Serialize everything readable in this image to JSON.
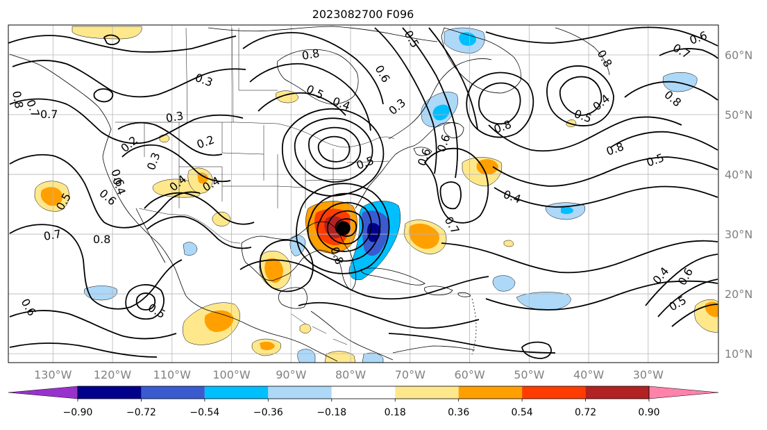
{
  "map": {
    "title": "2023082700 F096",
    "region": "North Atlantic / North America",
    "colors": {
      "background": "#ffffff",
      "frame": "#000000",
      "gridline": "#b4b4b4",
      "coastline": "#000000",
      "border": "#000000",
      "tick_label": "#808080",
      "contour": "#000000",
      "storm_marker": "#000000"
    },
    "longitude_labels": [
      "130°W",
      "120°W",
      "110°W",
      "100°W",
      "90°W",
      "80°W",
      "70°W",
      "60°W",
      "50°W",
      "40°W",
      "30°W"
    ],
    "latitude_labels": [
      "60°N",
      "50°N",
      "40°N",
      "30°N",
      "20°N",
      "10°N"
    ],
    "contour_labels": [
      "0.8",
      "0.3",
      "0.8",
      "0.5",
      "0.4",
      "0.6",
      "0.3",
      "0.8",
      "0.5",
      "0.4",
      "0.7",
      "0.6",
      "0.8",
      "0.7",
      "0.7",
      "0.3",
      "0.2",
      "0.2",
      "0.3",
      "0.4",
      "0.6",
      "0.5",
      "0.6",
      "0.5",
      "0.8",
      "0.5",
      "0.4",
      "0.7",
      "0.4",
      "0.6",
      "0.5",
      "0.7",
      "0.8",
      "0.6",
      "0.4",
      "0.5",
      "0.5",
      "0.6",
      "0.4",
      "0.8",
      "0.8",
      "0.6"
    ],
    "markers": [
      {
        "name": "storm-center",
        "lon": -81.2,
        "lat": 31.0
      }
    ]
  },
  "colorbar": {
    "tick_labels": [
      "−0.90",
      "−0.72",
      "−0.54",
      "−0.36",
      "−0.18",
      "0.18",
      "0.36",
      "0.54",
      "0.72",
      "0.90"
    ],
    "bins": [
      {
        "from": null,
        "to": -0.9,
        "color": "#9932cc"
      },
      {
        "from": -0.9,
        "to": -0.72,
        "color": "#00008b"
      },
      {
        "from": -0.72,
        "to": -0.54,
        "color": "#3a5bd0"
      },
      {
        "from": -0.54,
        "to": -0.36,
        "color": "#00bfff"
      },
      {
        "from": -0.36,
        "to": -0.18,
        "color": "#add8f8"
      },
      {
        "from": -0.18,
        "to": 0.18,
        "color": "#ffffff"
      },
      {
        "from": 0.18,
        "to": 0.36,
        "color": "#ffe88c"
      },
      {
        "from": 0.36,
        "to": 0.54,
        "color": "#ffa000"
      },
      {
        "from": 0.54,
        "to": 0.72,
        "color": "#ff3c00"
      },
      {
        "from": 0.72,
        "to": 0.9,
        "color": "#b22222"
      },
      {
        "from": 0.9,
        "to": null,
        "color": "#ff82aa"
      }
    ]
  }
}
